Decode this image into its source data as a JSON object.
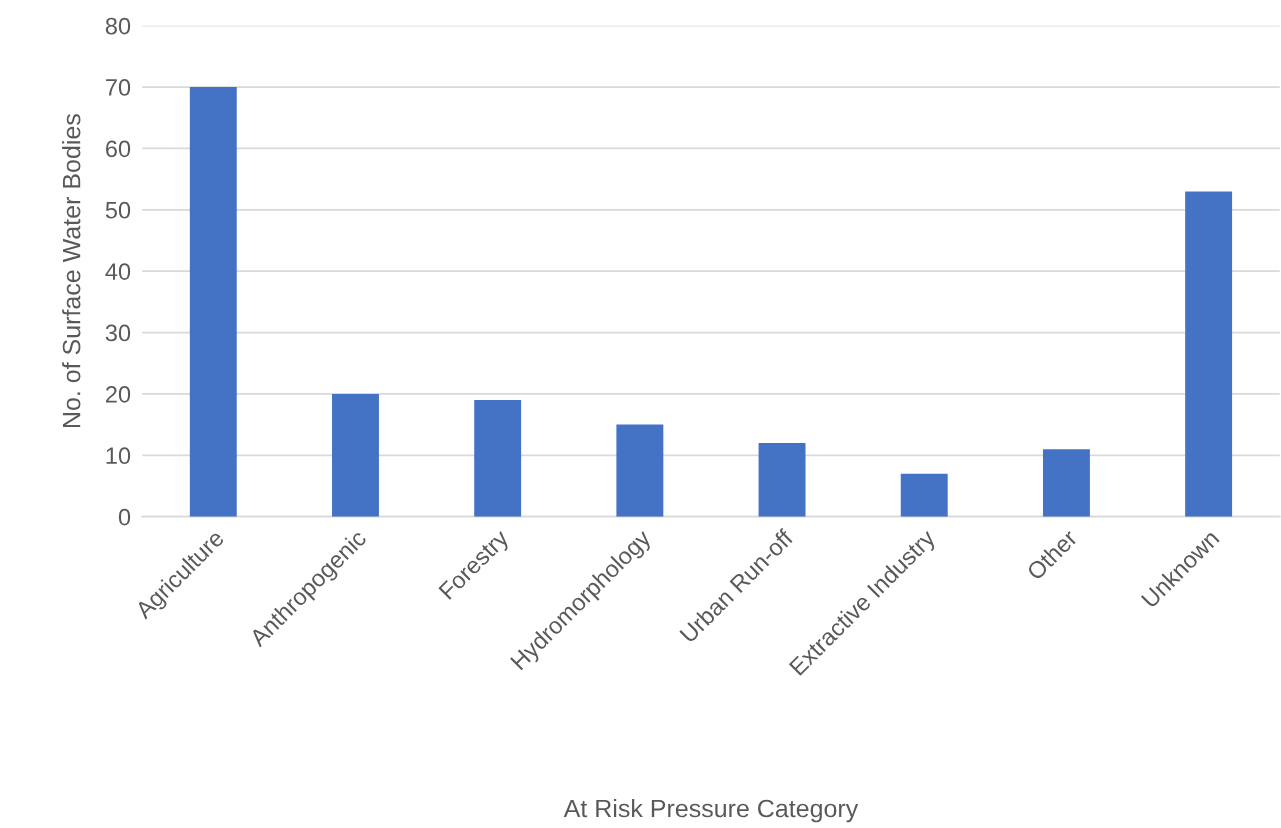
{
  "chart_data": {
    "type": "bar",
    "xlabel": "At Risk Pressure Category",
    "ylabel": "No. of Surface Water Bodies",
    "categories": [
      "Agriculture",
      "Anthropogenic",
      "Forestry",
      "Hydromorphology",
      "Urban Run-off",
      "Extractive Industry",
      "Other",
      "Unknown"
    ],
    "values": [
      70,
      20,
      19,
      15,
      12,
      7,
      11,
      53
    ],
    "color": "#4472c4",
    "ylim": [
      0,
      80
    ],
    "yticks": [
      0,
      10,
      20,
      30,
      40,
      50,
      60,
      70,
      80
    ],
    "grid": "y",
    "legend": false
  }
}
